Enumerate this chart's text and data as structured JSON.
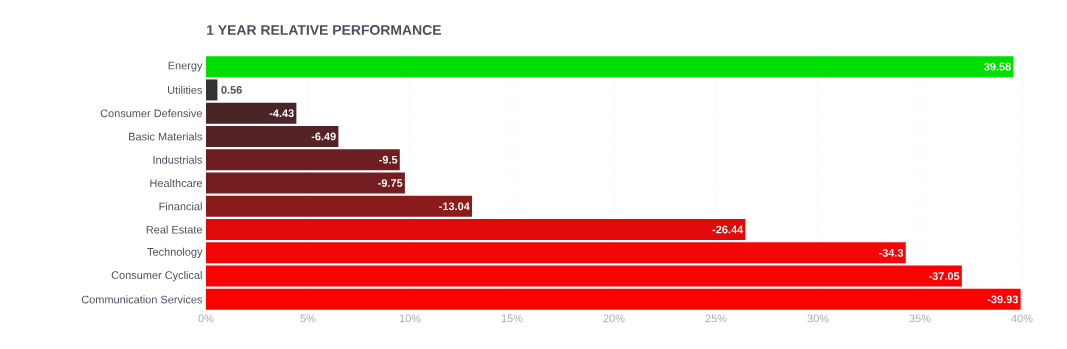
{
  "chart_data": {
    "type": "bar",
    "orientation": "horizontal",
    "title": "1 YEAR RELATIVE PERFORMANCE",
    "categories": [
      "Energy",
      "Utilities",
      "Consumer Defensive",
      "Basic Materials",
      "Industrials",
      "Healthcare",
      "Financial",
      "Real Estate",
      "Technology",
      "Consumer Cyclical",
      "Communication Services"
    ],
    "values": [
      39.58,
      0.56,
      4.43,
      6.49,
      9.5,
      9.75,
      13.04,
      26.44,
      34.3,
      37.05,
      39.93
    ],
    "annotations": [
      {
        "text": "39.58",
        "x": 39.58,
        "y": "Energy"
      },
      {
        "text": "0.56",
        "x": 0.56,
        "y": "Utilities"
      },
      {
        "text": "-4.43",
        "x": 4.43,
        "y": "Consumer Defensive"
      },
      {
        "text": "-6.49",
        "x": 6.49,
        "y": "Basic Materials"
      },
      {
        "text": "-9.5",
        "x": 9.5,
        "y": "Industrials"
      },
      {
        "text": "-9.75",
        "x": 9.75,
        "y": "Healthcare"
      },
      {
        "text": "-13.04",
        "x": 13.04,
        "y": "Financial"
      },
      {
        "text": "-26.44",
        "x": 26.44,
        "y": "Real Estate"
      },
      {
        "text": "-34.3",
        "x": 34.3,
        "y": "Technology"
      },
      {
        "text": "-37.05",
        "x": 37.05,
        "y": "Consumer Cyclical"
      },
      {
        "text": "-39.93",
        "x": 39.93,
        "y": "Communication Services"
      }
    ],
    "colors": [
      "#00e000",
      "#333333",
      "#4a2427",
      "#552226",
      "#6e1e20",
      "#721e20",
      "#8b1a1a",
      "#e00a0a",
      "#f50505",
      "#fa0202",
      "#ff0000"
    ],
    "xlim": [
      0,
      40
    ],
    "xticks": [
      {
        "value": 0,
        "label": "0%"
      },
      {
        "value": 5,
        "label": "5%"
      },
      {
        "value": 10,
        "label": "10%"
      },
      {
        "value": 15,
        "label": "15%"
      },
      {
        "value": 20,
        "label": "20%"
      },
      {
        "value": 25,
        "label": "25%"
      },
      {
        "value": 30,
        "label": "30%"
      },
      {
        "value": 35,
        "label": "35%"
      },
      {
        "value": 40,
        "label": "40%"
      }
    ],
    "grid": "x"
  }
}
